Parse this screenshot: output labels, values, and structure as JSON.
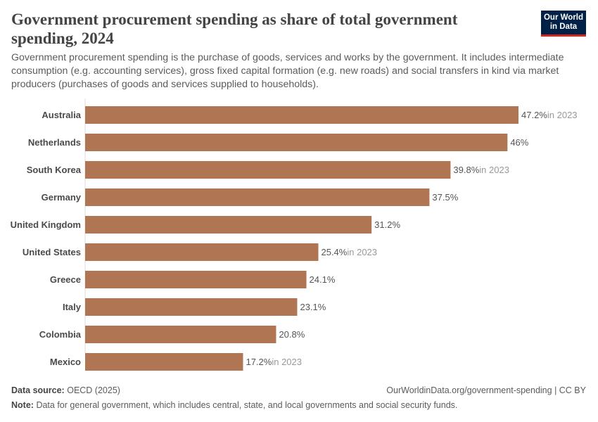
{
  "title": "Government procurement spending as share of total government spending, 2024",
  "subtitle": "Government procurement spending is the purchase of goods, services and works by the government. It includes intermediate consumption (e.g. accounting services), gross fixed capital formation (e.g. new roads) and social transfers in kind via market producers (purchases of goods and services supplied to households).",
  "logo": "Our World in Data",
  "colors": {
    "bar": "#b07653",
    "logo_bg": "#002147",
    "logo_accent": "#ce261e"
  },
  "chart_data": {
    "type": "bar",
    "orientation": "horizontal",
    "unit": "%",
    "categories": [
      "Australia",
      "Netherlands",
      "South Korea",
      "Germany",
      "United Kingdom",
      "United States",
      "Greece",
      "Italy",
      "Colombia",
      "Mexico"
    ],
    "values": [
      47.2,
      46,
      39.8,
      37.5,
      31.2,
      25.4,
      24.1,
      23.1,
      20.8,
      17.2
    ],
    "value_labels": [
      "47.2%",
      "46%",
      "39.8%",
      "37.5%",
      "31.2%",
      "25.4%",
      "24.1%",
      "23.1%",
      "20.8%",
      "17.2%"
    ],
    "year_notes": [
      "in 2023",
      "",
      "in 2023",
      "",
      "",
      "in 2023",
      "",
      "",
      "",
      "in 2023"
    ],
    "xlim": [
      0,
      47.2
    ]
  },
  "footer": {
    "source_label": "Data source:",
    "source": "OECD (2025)",
    "url": "OurWorldinData.org/government-spending | CC BY",
    "note_label": "Note:",
    "note": "Data for general government, which includes central, state, and local governments and social security funds."
  }
}
